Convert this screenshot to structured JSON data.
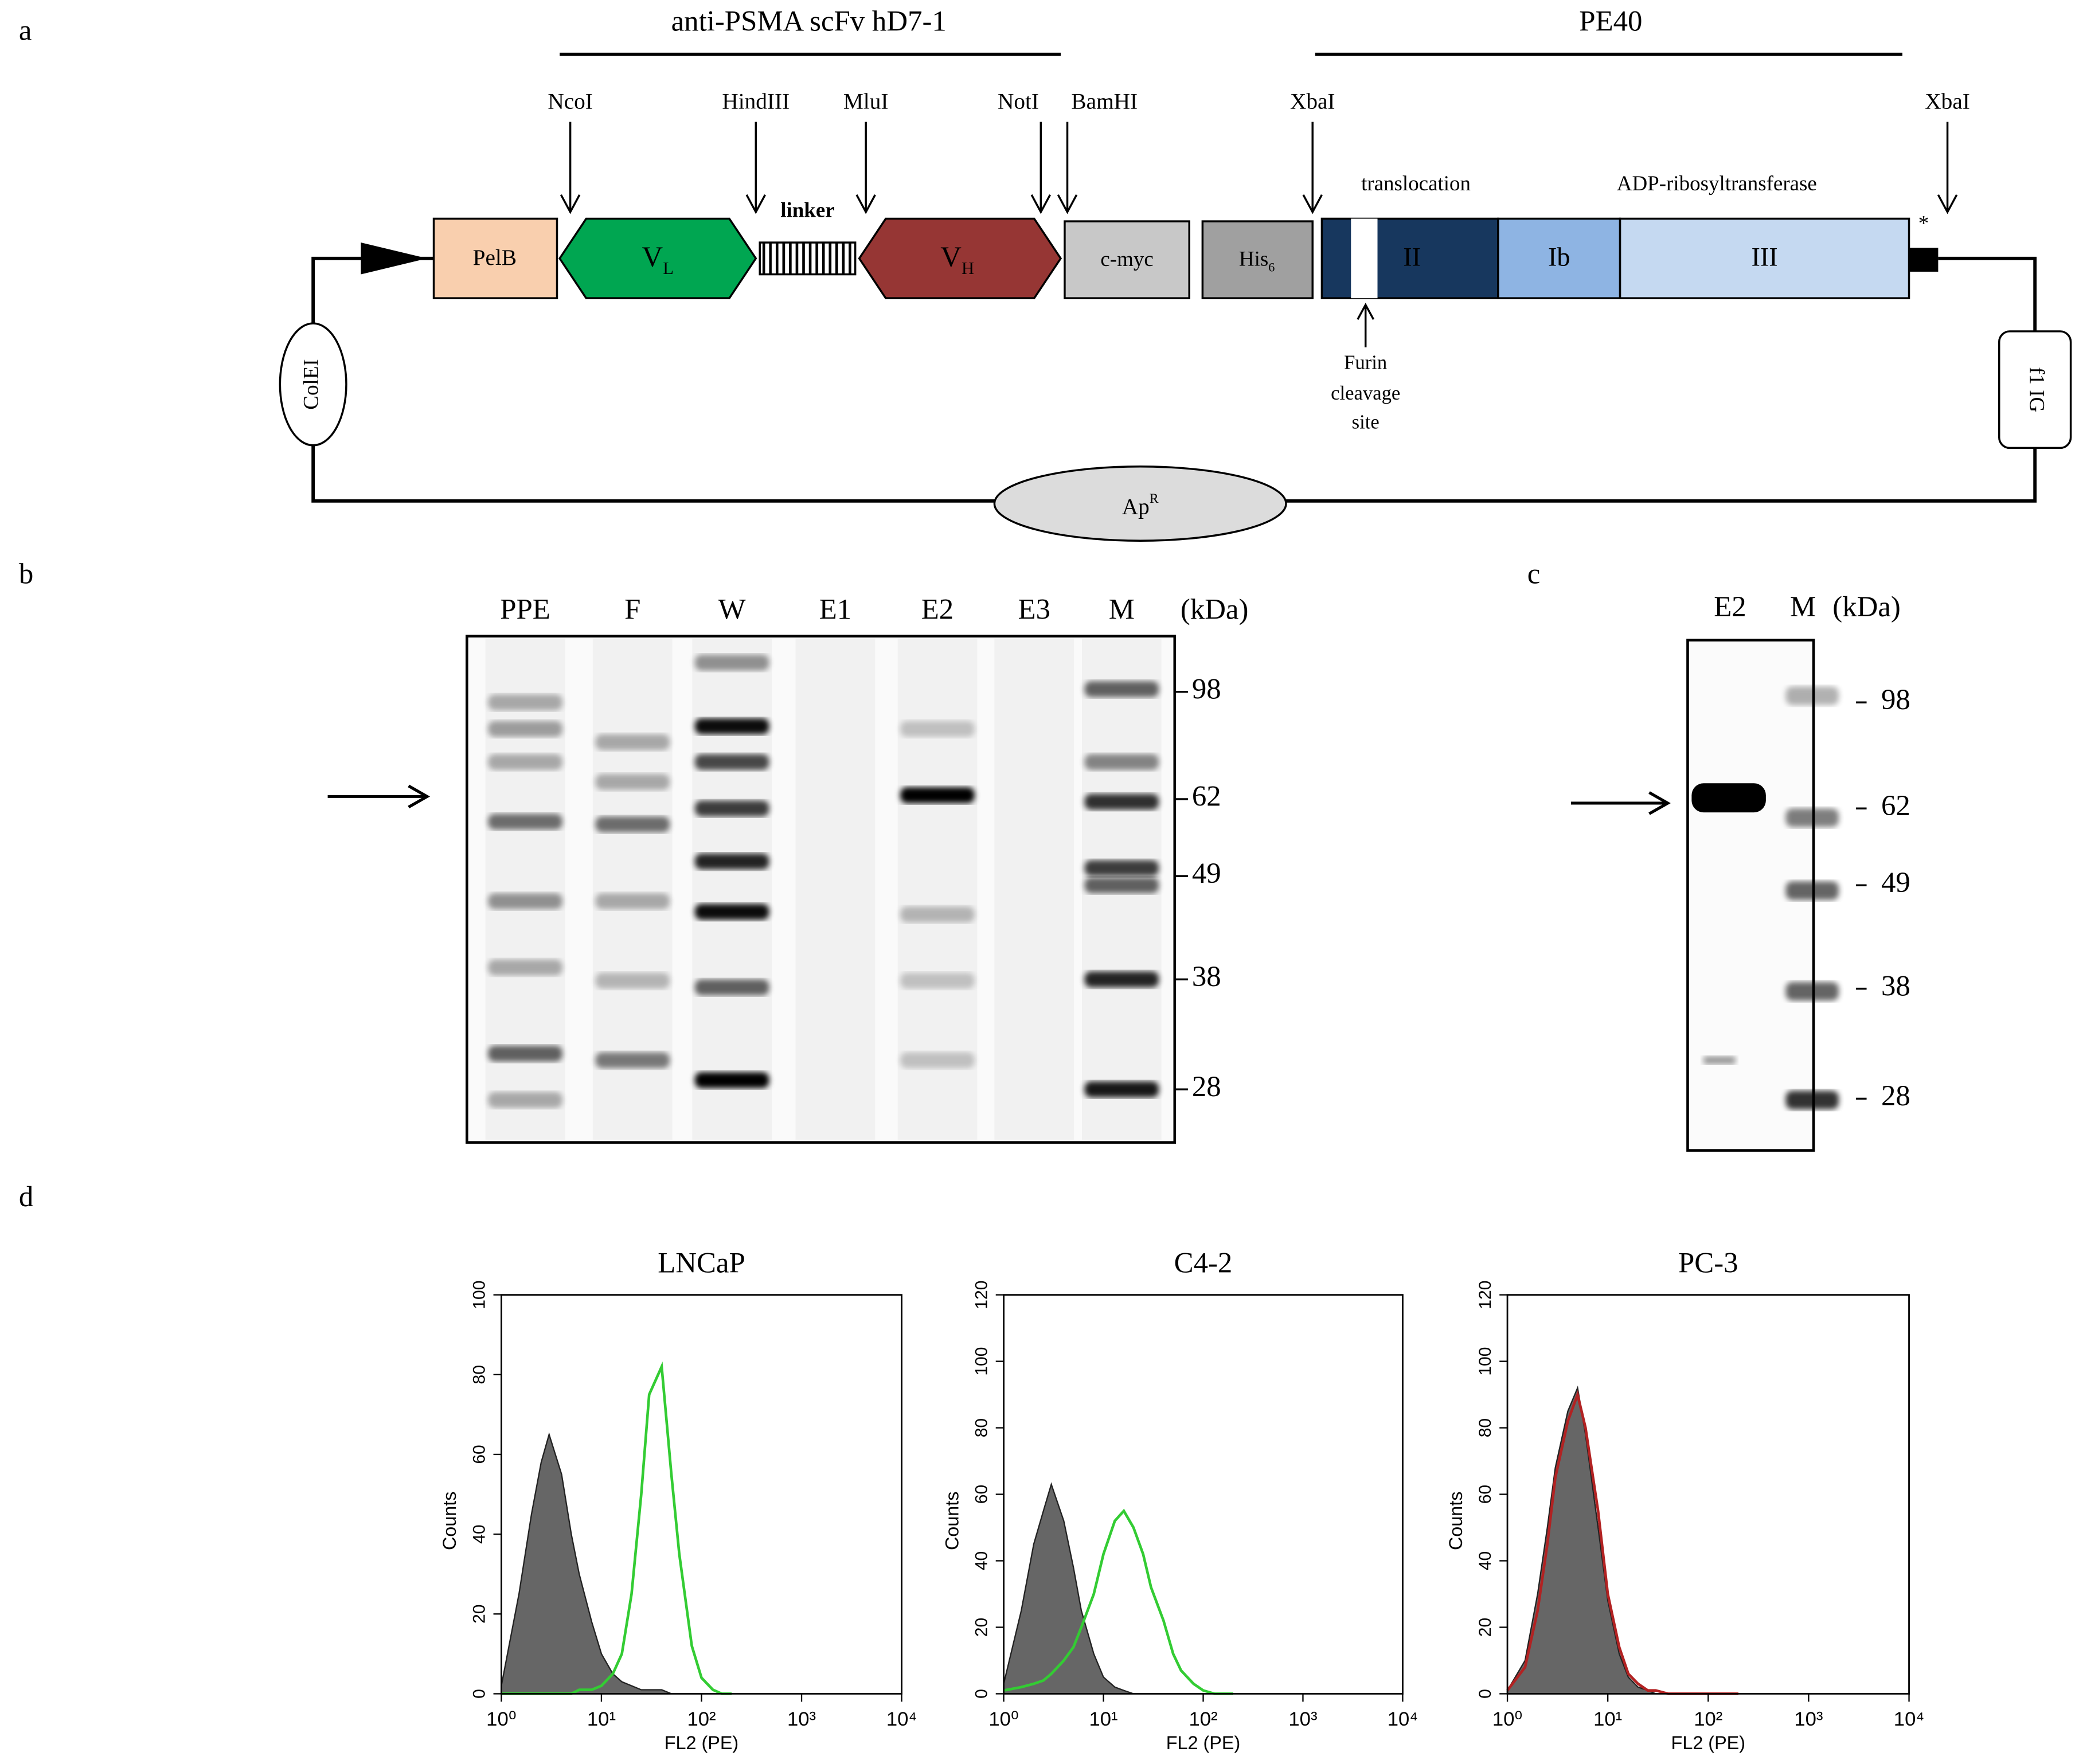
{
  "panel_labels": [
    "a",
    "b",
    "c",
    "d"
  ],
  "construct": {
    "title_left": "anti-PSMA scFv hD7-1",
    "title_right": "PE40",
    "sites": [
      "NcoI",
      "HindIII",
      "MluI",
      "NotI",
      "BamHI",
      "XbaI",
      "XbaI"
    ],
    "pelb": "PelB",
    "vl": {
      "main": "V",
      "sub": "L"
    },
    "linker": "linker",
    "vh": {
      "main": "V",
      "sub": "H"
    },
    "cmyc": "c-myc",
    "his": {
      "main": "His",
      "sub": "6"
    },
    "domains": [
      "II",
      "Ib",
      "III"
    ],
    "translocation": "translocation",
    "adp": "ADP-ribosyltransferase",
    "stop": "*",
    "furin": [
      "Furin",
      "cleavage",
      "site"
    ],
    "colei": "ColEI",
    "f1ig": "f1 IG",
    "apr": {
      "main": "Ap",
      "sup": "R"
    }
  },
  "gel_b": {
    "lanes": [
      "PPE",
      "F",
      "W",
      "E1",
      "E2",
      "E3",
      "M"
    ],
    "unit": "(kDa)",
    "markers": [
      98,
      62,
      49,
      38,
      28
    ]
  },
  "gel_c": {
    "lanes": [
      "E2",
      "M"
    ],
    "unit": "(kDa)",
    "markers": [
      98,
      62,
      49,
      38,
      28
    ]
  },
  "chart_data": [
    {
      "type": "histogram-overlay",
      "title": "LNCaP",
      "x_label": "FL2 (PE)",
      "y_label": "Counts",
      "log_x": true,
      "xlim": [
        1,
        10000
      ],
      "ylim": [
        0,
        100
      ],
      "xticks": [
        {
          "value": 1,
          "label": "10⁰"
        },
        {
          "value": 10,
          "label": "10¹"
        },
        {
          "value": 100,
          "label": "10²"
        },
        {
          "value": 1000,
          "label": "10³"
        },
        {
          "value": 10000,
          "label": "10⁴"
        }
      ],
      "yticks": [
        0,
        20,
        40,
        60,
        80,
        100
      ],
      "x": [
        1,
        1.5,
        2,
        2.5,
        3,
        4,
        5,
        6,
        8,
        10,
        13,
        16,
        20,
        25,
        30,
        40,
        50,
        60,
        80,
        100,
        130,
        160,
        200
      ],
      "series": [
        {
          "color": "#666666",
          "filled": true,
          "values": [
            2,
            25,
            45,
            58,
            65,
            55,
            40,
            30,
            18,
            10,
            5,
            3,
            2,
            1,
            1,
            1,
            0,
            0,
            0,
            0,
            0,
            0,
            0
          ]
        },
        {
          "color": "#33cc33",
          "filled": false,
          "values": [
            0,
            0,
            0,
            0,
            0,
            0,
            0,
            1,
            1,
            2,
            5,
            10,
            25,
            50,
            75,
            82,
            55,
            35,
            12,
            4,
            1,
            0,
            0
          ]
        }
      ]
    },
    {
      "type": "histogram-overlay",
      "title": "C4-2",
      "x_label": "FL2 (PE)",
      "y_label": "Counts",
      "log_x": true,
      "xlim": [
        1,
        10000
      ],
      "ylim": [
        0,
        120
      ],
      "xticks": [
        {
          "value": 1,
          "label": "10⁰"
        },
        {
          "value": 10,
          "label": "10¹"
        },
        {
          "value": 100,
          "label": "10²"
        },
        {
          "value": 1000,
          "label": "10³"
        },
        {
          "value": 10000,
          "label": "10⁴"
        }
      ],
      "yticks": [
        0,
        20,
        40,
        60,
        80,
        100,
        120
      ],
      "x": [
        1,
        1.5,
        2,
        2.5,
        3,
        4,
        5,
        6,
        8,
        10,
        13,
        16,
        20,
        25,
        30,
        40,
        50,
        60,
        80,
        100,
        130,
        160,
        200
      ],
      "series": [
        {
          "color": "#666666",
          "filled": true,
          "values": [
            3,
            25,
            45,
            55,
            63,
            52,
            38,
            25,
            12,
            5,
            2,
            1,
            0,
            0,
            0,
            0,
            0,
            0,
            0,
            0,
            0,
            0,
            0
          ]
        },
        {
          "color": "#33cc33",
          "filled": false,
          "values": [
            1,
            2,
            3,
            4,
            6,
            10,
            14,
            20,
            30,
            42,
            52,
            55,
            50,
            42,
            32,
            22,
            12,
            7,
            3,
            1,
            0,
            0,
            0
          ]
        }
      ]
    },
    {
      "type": "histogram-overlay",
      "title": "PC-3",
      "x_label": "FL2 (PE)",
      "y_label": "Counts",
      "log_x": true,
      "xlim": [
        1,
        10000
      ],
      "ylim": [
        0,
        120
      ],
      "xticks": [
        {
          "value": 1,
          "label": "10⁰"
        },
        {
          "value": 10,
          "label": "10¹"
        },
        {
          "value": 100,
          "label": "10²"
        },
        {
          "value": 1000,
          "label": "10³"
        },
        {
          "value": 10000,
          "label": "10⁴"
        }
      ],
      "yticks": [
        0,
        20,
        40,
        60,
        80,
        100,
        120
      ],
      "x": [
        1,
        1.5,
        2,
        2.5,
        3,
        4,
        5,
        6,
        8,
        10,
        13,
        16,
        20,
        25,
        30,
        40,
        50,
        60,
        80,
        100,
        130,
        160,
        200
      ],
      "series": [
        {
          "color": "#666666",
          "filled": true,
          "values": [
            1,
            10,
            30,
            50,
            68,
            85,
            92,
            78,
            50,
            28,
            12,
            5,
            2,
            1,
            0,
            0,
            0,
            0,
            0,
            0,
            0,
            0,
            0
          ]
        },
        {
          "color": "#b22222",
          "filled": false,
          "values": [
            1,
            8,
            25,
            45,
            65,
            82,
            90,
            80,
            55,
            30,
            14,
            6,
            3,
            1,
            1,
            0,
            0,
            0,
            0,
            0,
            0,
            0,
            0
          ]
        }
      ]
    }
  ]
}
